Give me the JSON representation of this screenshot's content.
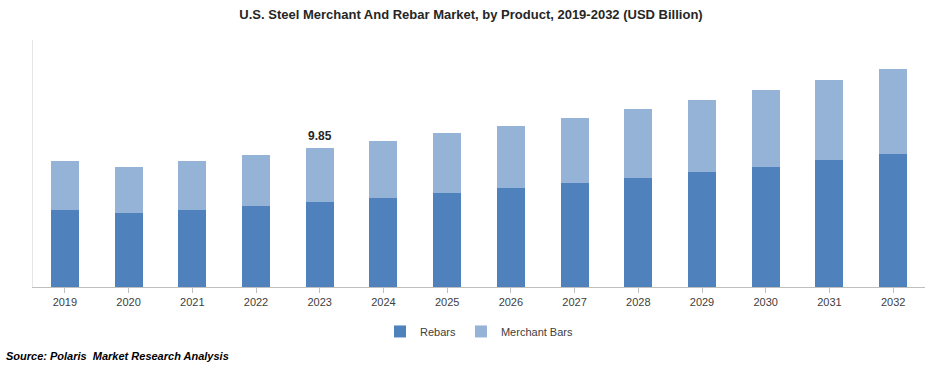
{
  "chart_data": {
    "type": "bar",
    "title": "U.S. Steel Merchant And Rebar Market, by Product, 2019-2032 (USD Billion)",
    "categories": [
      "2019",
      "2020",
      "2021",
      "2022",
      "2023",
      "2024",
      "2025",
      "2026",
      "2027",
      "2028",
      "2029",
      "2030",
      "2031",
      "2032"
    ],
    "series": [
      {
        "name": "Rebars",
        "color": "#4f81bd",
        "values": [
          5.46,
          5.24,
          5.46,
          5.74,
          6.02,
          6.31,
          6.66,
          7.02,
          7.37,
          7.73,
          8.15,
          8.51,
          9.0,
          9.43
        ]
      },
      {
        "name": "Merchant Bars",
        "color": "#95b3d7",
        "values": [
          3.47,
          3.26,
          3.47,
          3.62,
          3.83,
          4.04,
          4.25,
          4.39,
          4.61,
          4.89,
          5.11,
          5.45,
          5.67,
          6.02
        ]
      }
    ],
    "stacked": true,
    "ylim": [
      0,
      17.5
    ],
    "grid": false,
    "legend": "bottom",
    "tick_labels": "x",
    "annotations": [
      {
        "category": "2023",
        "text": "9.85",
        "value": 9.85
      }
    ],
    "source": "Source: Polaris  Market Research Analysis"
  }
}
